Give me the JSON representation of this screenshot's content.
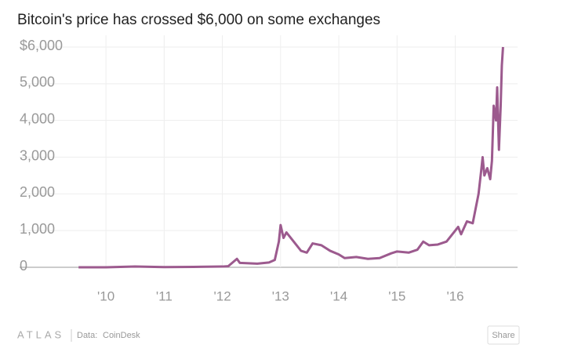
{
  "chart_data": {
    "type": "line",
    "title": "Bitcoin's price has crossed $6,000 on some exchanges",
    "x": [
      2009.53,
      2010.0,
      2010.5,
      2011.0,
      2011.5,
      2012.0,
      2012.1,
      2012.25,
      2012.3,
      2012.6,
      2012.8,
      2012.9,
      2012.97,
      2013.0,
      2013.05,
      2013.1,
      2013.15,
      2013.25,
      2013.35,
      2013.45,
      2013.55,
      2013.7,
      2013.85,
      2014.0,
      2014.1,
      2014.3,
      2014.5,
      2014.7,
      2014.9,
      2015.0,
      2015.2,
      2015.35,
      2015.45,
      2015.55,
      2015.7,
      2015.85,
      2016.0,
      2016.05,
      2016.1,
      2016.2,
      2016.3,
      2016.4,
      2016.45,
      2016.47,
      2016.5,
      2016.55,
      2016.6,
      2016.63,
      2016.66,
      2016.7,
      2016.72,
      2016.75,
      2016.78,
      2016.8,
      2016.82
    ],
    "series": [
      {
        "name": "Bitcoin price",
        "color": "#9c5a8e",
        "values": [
          0,
          0,
          20,
          5,
          10,
          20,
          30,
          230,
          120,
          100,
          130,
          200,
          700,
          1150,
          800,
          950,
          850,
          650,
          450,
          400,
          650,
          600,
          450,
          350,
          250,
          280,
          230,
          250,
          380,
          430,
          400,
          480,
          700,
          600,
          620,
          700,
          1000,
          1100,
          900,
          1250,
          1200,
          2000,
          2700,
          3000,
          2500,
          2700,
          2400,
          2900,
          4400,
          4000,
          4900,
          3200,
          4400,
          5500,
          6000
        ]
      }
    ],
    "xlim": [
      2009.46,
      2017.07
    ],
    "xticks": [
      {
        "value": 2010,
        "label": "'10"
      },
      {
        "value": 2011,
        "label": "'11"
      },
      {
        "value": 2012,
        "label": "'12"
      },
      {
        "value": 2013,
        "label": "'13"
      },
      {
        "value": 2014,
        "label": "'14"
      },
      {
        "value": 2015,
        "label": "'15"
      },
      {
        "value": 2016,
        "label": "'16"
      }
    ],
    "ylim": [
      0,
      6000
    ],
    "yticks": [
      0,
      {
        "value": 1000,
        "label": "1,000"
      },
      {
        "value": 2000,
        "label": "2,000"
      },
      {
        "value": 3000,
        "label": "3,000"
      },
      {
        "value": 4000,
        "label": "4,000"
      },
      {
        "value": 5000,
        "label": "5,000"
      },
      {
        "value": 6000,
        "label": "$6,000"
      }
    ],
    "grid": true
  },
  "footer": {
    "brand": "ATLAS",
    "source_label": "Data:",
    "source": "CoinDesk",
    "button": "Share"
  }
}
